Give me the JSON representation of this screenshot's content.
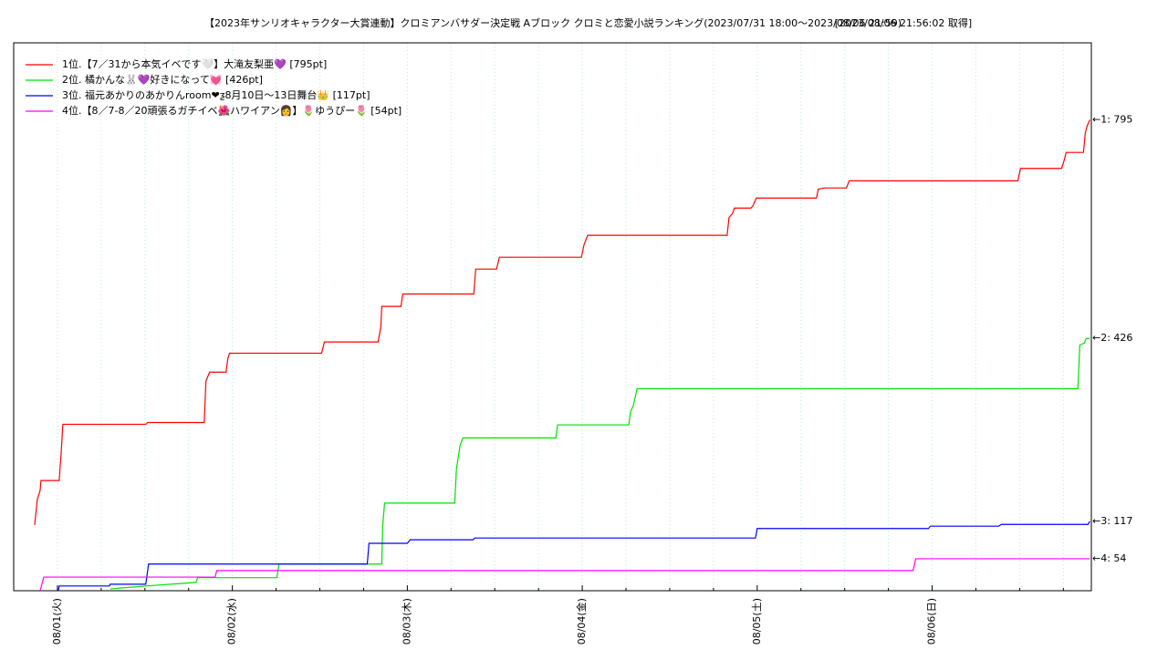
{
  "chart_data": {
    "type": "line",
    "title": "【2023年サンリオキャラクター大賞連動】クロミアンバサダー決定戦 Aブロック クロミと恋愛小説ランキング(2023/07/31 18:00〜2023/08/06 21:59)",
    "subtitle": "[2023/08/06 21:56:02 取得]",
    "xlim": [
      0.75,
      6.91
    ],
    "ylim": [
      0,
      925
    ],
    "xticks": [
      {
        "value": 1,
        "label": "08/01(火)"
      },
      {
        "value": 2,
        "label": "08/02(水)"
      },
      {
        "value": 3,
        "label": "08/03(木)"
      },
      {
        "value": 4,
        "label": "08/04(金)"
      },
      {
        "value": 5,
        "label": "08/05(土)"
      },
      {
        "value": 6,
        "label": "08/06(日)"
      }
    ],
    "xminorticks": [
      1.25,
      1.5,
      1.75,
      2.25,
      2.5,
      2.75,
      3.25,
      3.5,
      3.75,
      4.25,
      4.5,
      4.75,
      5.25,
      5.5,
      5.75,
      6.25,
      6.5,
      6.75
    ],
    "grid": true,
    "legend": "upper left",
    "series": [
      {
        "name": "1位.【7／31から本気イベです🤍】大滝友梨亜💜 [795pt]",
        "color": "#ff0000",
        "end_label": "←1: 795",
        "x": [
          0.87,
          0.885,
          0.901,
          0.906,
          1.01,
          1.021,
          1.031,
          1.505,
          1.516,
          1.839,
          1.849,
          1.87,
          1.964,
          1.974,
          1.984,
          2.51,
          2.526,
          2.833,
          2.849,
          2.854,
          2.964,
          2.974,
          3.38,
          3.391,
          3.51,
          3.526,
          3.995,
          4.01,
          4.031,
          4.828,
          4.839,
          4.859,
          4.87,
          4.964,
          4.974,
          4.995,
          5.339,
          5.349,
          5.385,
          5.51,
          5.526,
          6.49,
          6.505,
          6.74,
          6.755,
          6.766,
          6.865,
          6.875,
          6.885,
          6.901
        ],
        "values": [
          111,
          154,
          169,
          186,
          186,
          231,
          281,
          281,
          284,
          284,
          354,
          369,
          369,
          392,
          401,
          401,
          420,
          420,
          446,
          480,
          480,
          501,
          501,
          543,
          543,
          563,
          563,
          584,
          600,
          600,
          630,
          637,
          646,
          646,
          649,
          663,
          663,
          678,
          680,
          680,
          692,
          692,
          713,
          713,
          727,
          740,
          740,
          772,
          784,
          795
        ]
      },
      {
        "name": "2位. 橘かんな🐰💜好きになって💓 [426pt]",
        "color": "#00e000",
        "end_label": "←2: 426",
        "x": [
          1.302,
          1.505,
          1.792,
          1.802,
          2.255,
          2.266,
          2.854,
          2.859,
          2.87,
          3.271,
          3.281,
          3.302,
          3.318,
          3.849,
          3.859,
          4.266,
          4.276,
          4.292,
          4.313,
          6.833,
          6.844,
          6.87,
          6.88,
          6.901
        ],
        "values": [
          3,
          8,
          14,
          22,
          22,
          45,
          45,
          108,
          148,
          148,
          206,
          246,
          258,
          258,
          280,
          280,
          303,
          312,
          341,
          341,
          415,
          418,
          426,
          426
        ]
      },
      {
        "name": "3位. 福元あかりのあかりんroom❤︎ƺ8月10日〜13日舞台👑 [117pt]",
        "color": "#0000ff",
        "end_label": "←3: 117",
        "x": [
          1.005,
          1.01,
          1.297,
          1.302,
          1.505,
          1.521,
          2.771,
          2.781,
          3.0,
          3.016,
          3.375,
          3.385,
          4.99,
          5.0,
          5.979,
          5.99,
          6.38,
          6.396,
          6.891,
          6.901
        ],
        "values": [
          0,
          8,
          8,
          11,
          11,
          45,
          45,
          80,
          80,
          86,
          86,
          89,
          89,
          105,
          105,
          109,
          109,
          112,
          112,
          117
        ]
      },
      {
        "name": "4位.【8／7-8／20頑張るガチイベ🌺ハワイアン👩】🌷ゆうぴー🌷 [54pt]",
        "color": "#ff00ff",
        "end_label": "←4: 54",
        "x": [
          0.901,
          0.922,
          1.901,
          1.911,
          5.891,
          5.906,
          6.901
        ],
        "values": [
          0,
          23,
          23,
          34,
          34,
          54,
          54
        ]
      }
    ]
  }
}
